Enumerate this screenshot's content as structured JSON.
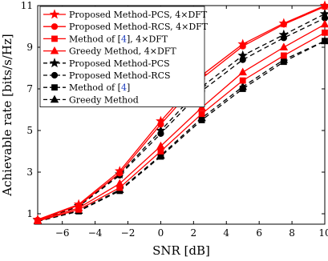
{
  "chart_data": {
    "type": "line",
    "xlabel": "SNR [dB]",
    "ylabel": "Achievable rate [bits/s/Hz]",
    "xlim": [
      -7.5,
      10
    ],
    "ylim": [
      0.5,
      11
    ],
    "x_ticks": [
      -6,
      -4,
      -2,
      0,
      2,
      4,
      6,
      8,
      10
    ],
    "y_ticks": [
      1,
      3,
      5,
      7,
      9,
      11
    ],
    "grid": false,
    "legend_position": "top-left",
    "x": [
      -7.5,
      -5,
      -2.5,
      0,
      2.5,
      5,
      7.5,
      10
    ],
    "series": [
      {
        "name": "Proposed Method-PCS, 4×DFT",
        "color": "#ff0000",
        "dash": "solid",
        "marker": "star",
        "values": [
          0.72,
          1.45,
          3.05,
          5.45,
          7.65,
          9.15,
          10.15,
          11.0
        ]
      },
      {
        "name": "Proposed Method-RCS, 4×DFT",
        "color": "#ff0000",
        "dash": "solid",
        "marker": "circle",
        "values": [
          0.7,
          1.4,
          2.95,
          5.3,
          7.5,
          9.05,
          10.1,
          10.95
        ]
      },
      {
        "name": "Method of [4], 4×DFT",
        "color": "#ff0000",
        "dash": "solid",
        "marker": "square",
        "values": [
          0.65,
          1.2,
          2.25,
          4.0,
          5.8,
          7.4,
          8.6,
          9.7
        ]
      },
      {
        "name": "Greedy Method, 4×DFT",
        "color": "#ff0000",
        "dash": "solid",
        "marker": "triangle",
        "values": [
          0.68,
          1.28,
          2.45,
          4.25,
          6.1,
          7.8,
          9.0,
          10.1
        ]
      },
      {
        "name": "Proposed Method-PCS",
        "color": "#000000",
        "dash": "dashed",
        "marker": "star",
        "values": [
          0.7,
          1.38,
          2.9,
          5.0,
          7.1,
          8.6,
          9.6,
          10.6
        ]
      },
      {
        "name": "Proposed Method-RCS",
        "color": "#000000",
        "dash": "dashed",
        "marker": "circle",
        "values": [
          0.68,
          1.35,
          2.85,
          4.85,
          6.9,
          8.4,
          9.45,
          10.4
        ]
      },
      {
        "name": "Method of [4]",
        "color": "#000000",
        "dash": "dashed",
        "marker": "square",
        "values": [
          0.63,
          1.12,
          2.1,
          3.75,
          5.5,
          7.0,
          8.3,
          9.3
        ]
      },
      {
        "name": "Greedy Method",
        "color": "#000000",
        "dash": "dashed",
        "marker": "triangle",
        "values": [
          0.64,
          1.15,
          2.15,
          3.8,
          5.6,
          7.1,
          8.4,
          9.3
        ]
      }
    ]
  }
}
